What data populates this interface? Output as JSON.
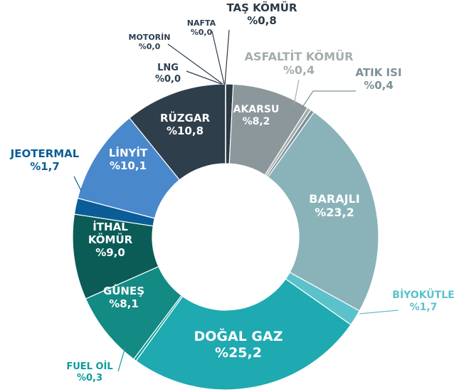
{
  "chart_data": {
    "type": "donut",
    "categories": [
      "TAŞ KÖMÜR",
      "AKARSU",
      "ASFALTİT KÖMÜR",
      "ATIK ISI",
      "BARAJLI",
      "BİYOKÜTLE",
      "DOĞAL GAZ",
      "FUEL OİL",
      "GÜNEŞ",
      "İTHAL KÖMÜR",
      "JEOTERMAL",
      "LİNYİT",
      "RÜZGAR",
      "LNG",
      "MOTORİN",
      "NAFTA"
    ],
    "values": [
      0.8,
      8.2,
      0.4,
      0.4,
      23.2,
      1.7,
      25.2,
      0.3,
      8.1,
      9.0,
      1.7,
      10.1,
      10.8,
      0.0,
      0.0,
      0.0
    ],
    "value_labels": [
      "%0,8",
      "%8,2",
      "%0,4",
      "%0,4",
      "%23,2",
      "%1,7",
      "%25,2",
      "%0,3",
      "%8,1",
      "%9,0",
      "%1,7",
      "%10,1",
      "%10,8",
      "%0,0",
      "%0,0",
      "%0,0"
    ],
    "colors": [
      "#2b3a45",
      "#8c979c",
      "#a4acae",
      "#7c9196",
      "#8ab3b9",
      "#5bc2cc",
      "#1fa9b0",
      "#0e9c9c",
      "#138a84",
      "#0b5c57",
      "#0a5d96",
      "#4a88cc",
      "#2f3e4b",
      "#2c3e50",
      "#2c3e50",
      "#2c3e50"
    ]
  }
}
